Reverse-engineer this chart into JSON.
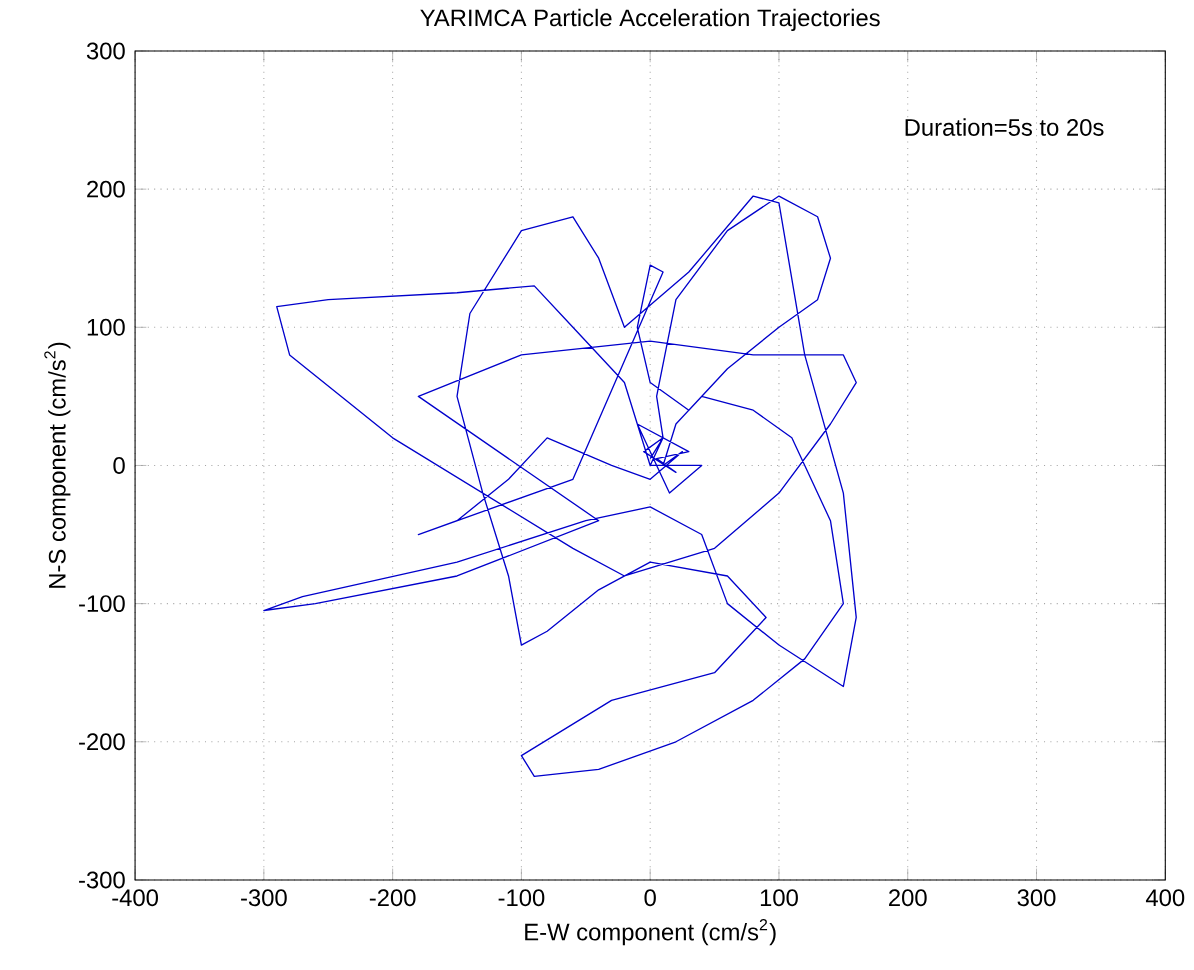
{
  "chart_data": {
    "type": "line",
    "title": "YARIMCA Particle Acceleration Trajectories",
    "xlabel": "E-W component (cm/s$^{2}$)",
    "ylabel": "N-S component (cm/s$^{2}$)",
    "annotations": [
      "Duration=5s to 20s"
    ],
    "xlim": [
      -400,
      400
    ],
    "ylim": [
      -300,
      300
    ],
    "xticks": [
      -400,
      -300,
      -200,
      -100,
      0,
      100,
      200,
      300,
      400
    ],
    "yticks": [
      -300,
      -200,
      -100,
      0,
      100,
      200,
      300
    ],
    "grid": true,
    "marker": "none",
    "line_style": "solid",
    "series": [
      {
        "color": "#0000cc",
        "x": [
          0,
          10,
          -5,
          20,
          5,
          30,
          -10,
          15,
          40,
          0,
          -20,
          -60,
          -90,
          -150,
          -250,
          -290,
          -280,
          -200,
          -130,
          -60,
          -20,
          50,
          100,
          140,
          160,
          150,
          80,
          0,
          -100,
          -180,
          -40,
          -150,
          -260,
          -300,
          -270,
          -150,
          -50,
          0,
          40,
          60,
          100,
          150,
          160,
          150,
          120,
          100,
          80,
          30,
          -20,
          -40,
          -60,
          -100,
          -140,
          -150,
          -130,
          -110,
          -100,
          -80,
          -40,
          0,
          60,
          90,
          50,
          -30,
          -100,
          -90,
          -40,
          20,
          80,
          120,
          150,
          140,
          110,
          80,
          40,
          20,
          10,
          25,
          0,
          -30,
          -80,
          -110,
          -150,
          -180,
          -120,
          -60,
          10,
          0,
          -10,
          0,
          30,
          60,
          100,
          130,
          140,
          130,
          100,
          60,
          20,
          5,
          10,
          0
        ],
        "values": [
          0,
          20,
          10,
          -5,
          5,
          10,
          30,
          -20,
          0,
          0,
          60,
          100,
          130,
          125,
          120,
          115,
          80,
          20,
          -20,
          -60,
          -80,
          -60,
          -20,
          30,
          60,
          80,
          80,
          90,
          80,
          50,
          -40,
          -80,
          -100,
          -105,
          -95,
          -70,
          -40,
          -30,
          -50,
          -100,
          -130,
          -160,
          -110,
          -20,
          80,
          190,
          195,
          140,
          100,
          150,
          180,
          170,
          110,
          50,
          -20,
          -80,
          -130,
          -120,
          -90,
          -70,
          -80,
          -110,
          -150,
          -170,
          -210,
          -225,
          -220,
          -200,
          -170,
          -140,
          -100,
          -40,
          20,
          40,
          50,
          30,
          0,
          10,
          -10,
          0,
          20,
          -10,
          -40,
          -50,
          -30,
          -10,
          140,
          145,
          100,
          60,
          40,
          70,
          100,
          120,
          150,
          180,
          195,
          170,
          120,
          50,
          20,
          5
        ]
      }
    ]
  }
}
